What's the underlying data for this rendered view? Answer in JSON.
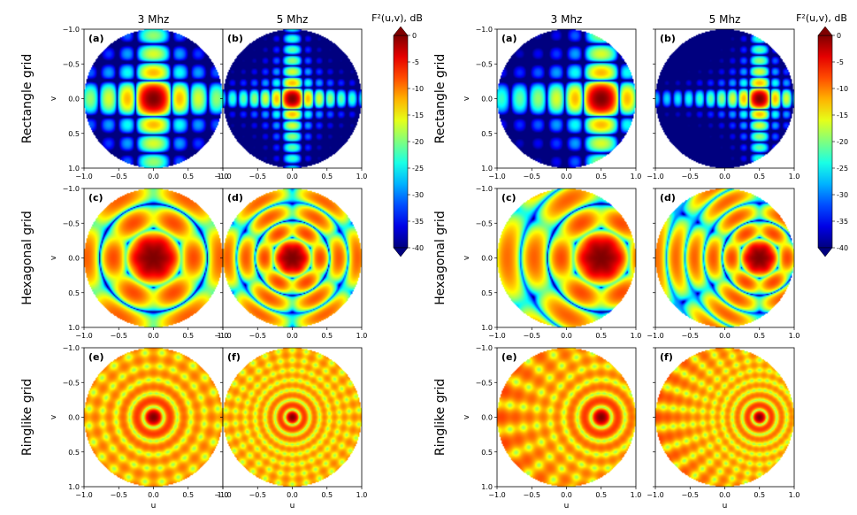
{
  "chart_data": {
    "type": "heatmap",
    "quantity": "F²(u, v), dB",
    "colorbar": {
      "label": "F²(u,v), dB",
      "range": [
        -40,
        0
      ],
      "ticks": [
        0,
        -5,
        -10,
        -15,
        -20,
        -25,
        -30,
        -35,
        -40
      ],
      "colormap": "jet"
    },
    "xlabel": "u",
    "ylabel": "v",
    "xlim": [
      -1.0,
      1.0
    ],
    "ylim": [
      -1.0,
      1.0
    ],
    "x_ticks": [
      "−1.0",
      "−0.5",
      "0.0",
      "0.5",
      "1.0"
    ],
    "y_ticks": [
      "1.0",
      "0.5",
      "0.0",
      "−0.5",
      "−1.0"
    ],
    "column_labels": [
      "3 Mhz",
      "5 Mhz"
    ],
    "row_labels": [
      "Rectangle grid",
      "Hexagonal grid",
      "Ringlike grid"
    ],
    "panel_labels": [
      "(a)",
      "(b)",
      "(c)",
      "(d)",
      "(e)",
      "(f)"
    ],
    "figures": [
      {
        "panels": [
          {
            "label": "(a)",
            "grid": "Rectangle grid",
            "frequency": "3 Mhz",
            "steer_u": 0.0
          },
          {
            "label": "(b)",
            "grid": "Rectangle grid",
            "frequency": "5 Mhz",
            "steer_u": 0.0
          },
          {
            "label": "(c)",
            "grid": "Hexagonal grid",
            "frequency": "3 Mhz",
            "steer_u": 0.0
          },
          {
            "label": "(d)",
            "grid": "Hexagonal grid",
            "frequency": "5 Mhz",
            "steer_u": 0.0
          },
          {
            "label": "(e)",
            "grid": "Ringlike grid",
            "frequency": "3 Mhz",
            "steer_u": 0.0
          },
          {
            "label": "(f)",
            "grid": "Ringlike grid",
            "frequency": "5 Mhz",
            "steer_u": 0.0
          }
        ]
      },
      {
        "panels": [
          {
            "label": "(a)",
            "grid": "Rectangle grid",
            "frequency": "3 Mhz",
            "steer_u": 0.5
          },
          {
            "label": "(b)",
            "grid": "Rectangle grid",
            "frequency": "5 Mhz",
            "steer_u": 0.5
          },
          {
            "label": "(c)",
            "grid": "Hexagonal grid",
            "frequency": "3 Mhz",
            "steer_u": 0.5
          },
          {
            "label": "(d)",
            "grid": "Hexagonal grid",
            "frequency": "5 Mhz",
            "steer_u": 0.5
          },
          {
            "label": "(e)",
            "grid": "Ringlike grid",
            "frequency": "3 Mhz",
            "steer_u": 0.5
          },
          {
            "label": "(f)",
            "grid": "Ringlike grid",
            "frequency": "5 Mhz",
            "steer_u": 0.5
          }
        ]
      }
    ]
  }
}
